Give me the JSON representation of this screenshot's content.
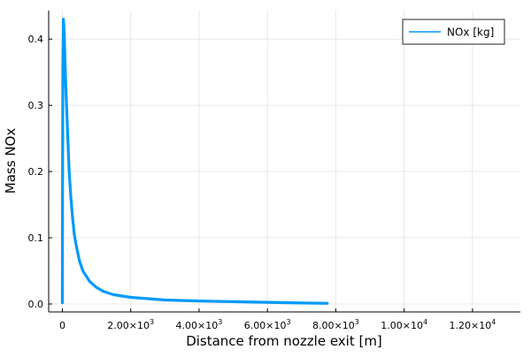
{
  "chart_data": {
    "type": "line",
    "title": "",
    "xlabel": "Distance from nozzle exit [m]",
    "ylabel": "Mass NOx",
    "xlim": [
      -400,
      13400
    ],
    "ylim": [
      -0.012,
      0.443
    ],
    "grid": true,
    "legend_position": "top-right",
    "x_ticks": [
      {
        "value": 0,
        "mantissa": "0",
        "exponent": ""
      },
      {
        "value": 2000,
        "mantissa": "2.00×10",
        "exponent": "3"
      },
      {
        "value": 4000,
        "mantissa": "4.00×10",
        "exponent": "3"
      },
      {
        "value": 6000,
        "mantissa": "6.00×10",
        "exponent": "3"
      },
      {
        "value": 8000,
        "mantissa": "8.00×10",
        "exponent": "3"
      },
      {
        "value": 10000,
        "mantissa": "1.00×10",
        "exponent": "4"
      },
      {
        "value": 12000,
        "mantissa": "1.20×10",
        "exponent": "4"
      }
    ],
    "y_ticks": [
      {
        "value": 0.0,
        "label": "0.0"
      },
      {
        "value": 0.1,
        "label": "0.1"
      },
      {
        "value": 0.2,
        "label": "0.2"
      },
      {
        "value": 0.3,
        "label": "0.3"
      },
      {
        "value": 0.4,
        "label": "0.4"
      }
    ],
    "series": [
      {
        "name": "NOx [kg]",
        "color": "#009af9",
        "x": [
          0,
          5,
          15,
          30,
          45,
          60,
          80,
          100,
          130,
          160,
          200,
          250,
          300,
          350,
          400,
          500,
          600,
          800,
          1000,
          1200,
          1500,
          2000,
          2500,
          3000,
          4000,
          5000,
          6000,
          7000,
          7750
        ],
        "y": [
          0.002,
          0.15,
          0.36,
          0.43,
          0.42,
          0.4,
          0.36,
          0.33,
          0.29,
          0.25,
          0.2,
          0.16,
          0.13,
          0.105,
          0.09,
          0.065,
          0.05,
          0.034,
          0.025,
          0.019,
          0.014,
          0.01,
          0.008,
          0.006,
          0.0045,
          0.0035,
          0.0025,
          0.0015,
          0.001
        ]
      }
    ]
  }
}
